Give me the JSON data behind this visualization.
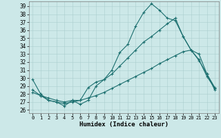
{
  "xlabel": "Humidex (Indice chaleur)",
  "bg_color": "#cce8e8",
  "line_color": "#1a6e6e",
  "grid_color": "#aacece",
  "xlim": [
    -0.5,
    23.5
  ],
  "ylim": [
    25.6,
    39.6
  ],
  "yticks": [
    26,
    27,
    28,
    29,
    30,
    31,
    32,
    33,
    34,
    35,
    36,
    37,
    38,
    39
  ],
  "xticks": [
    0,
    1,
    2,
    3,
    4,
    5,
    6,
    7,
    8,
    9,
    10,
    11,
    12,
    13,
    14,
    15,
    16,
    17,
    18,
    19,
    20,
    21,
    22,
    23
  ],
  "line1_x": [
    0,
    1,
    2,
    3,
    4,
    5,
    6,
    7,
    8,
    9,
    10,
    11,
    12,
    13,
    14,
    15,
    16,
    17,
    18,
    19,
    20,
    21,
    22,
    23
  ],
  "line1_y": [
    29.8,
    28.0,
    27.2,
    27.0,
    26.5,
    27.2,
    26.7,
    27.2,
    29.0,
    29.8,
    31.0,
    33.2,
    34.2,
    36.5,
    38.2,
    39.3,
    38.5,
    37.5,
    37.2,
    35.2,
    33.5,
    32.2,
    30.5,
    28.5
  ],
  "line2_x": [
    0,
    1,
    2,
    3,
    4,
    5,
    6,
    7,
    8,
    9,
    10,
    11,
    12,
    13,
    14,
    15,
    16,
    17,
    18,
    19,
    20,
    21,
    22,
    23
  ],
  "line2_y": [
    28.5,
    27.8,
    27.2,
    27.0,
    26.8,
    27.0,
    27.2,
    28.8,
    29.5,
    29.8,
    30.5,
    31.5,
    32.5,
    33.5,
    34.5,
    35.2,
    36.0,
    36.8,
    37.5,
    35.2,
    33.5,
    32.3,
    30.2,
    28.7
  ],
  "line3_x": [
    0,
    1,
    2,
    3,
    4,
    5,
    6,
    7,
    8,
    9,
    10,
    11,
    12,
    13,
    14,
    15,
    16,
    17,
    18,
    19,
    20,
    21,
    22,
    23
  ],
  "line3_y": [
    28.2,
    27.8,
    27.5,
    27.2,
    27.0,
    27.2,
    27.2,
    27.5,
    27.8,
    28.2,
    28.7,
    29.2,
    29.7,
    30.2,
    30.7,
    31.2,
    31.8,
    32.3,
    32.8,
    33.3,
    33.5,
    33.0,
    30.5,
    28.8
  ]
}
